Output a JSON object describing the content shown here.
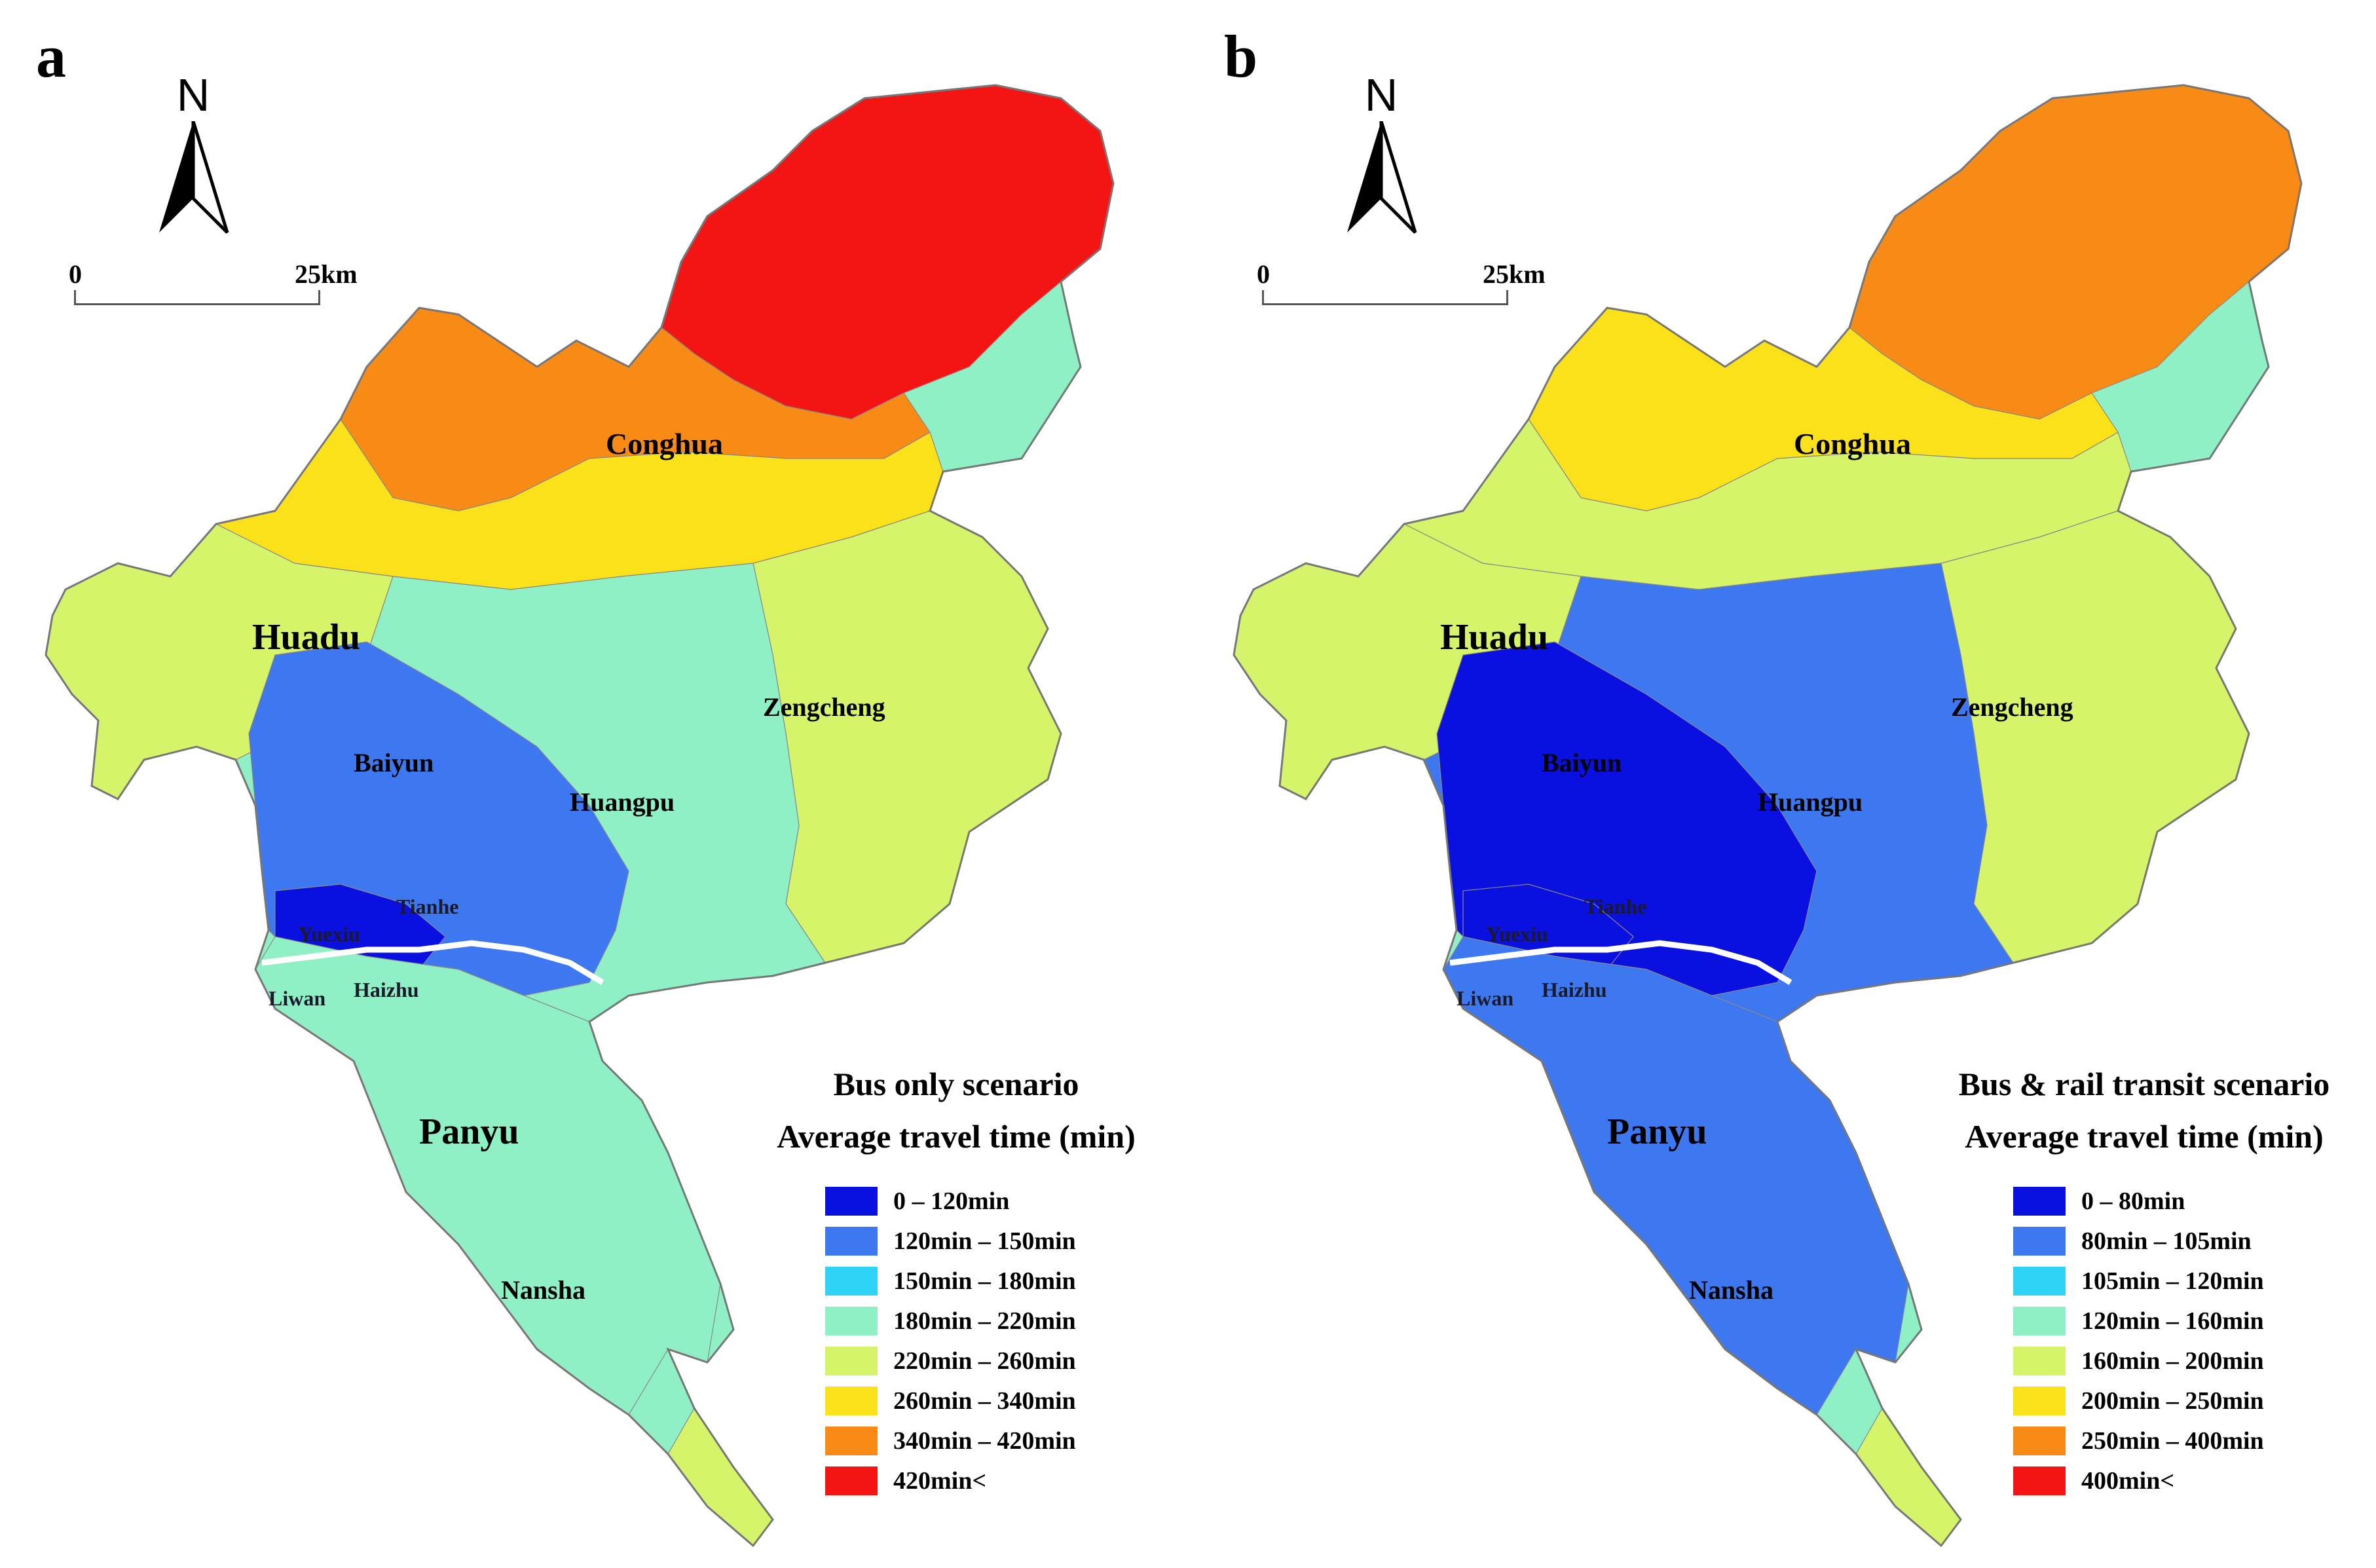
{
  "panels": [
    {
      "letter": "a",
      "north_label": "N",
      "scale": {
        "zero": "0",
        "max": "25",
        "unit": "km"
      },
      "legend": {
        "scenario": "Bus only scenario",
        "subtitle": "Average travel time (min)",
        "items": [
          {
            "label": "0 – 120min",
            "color": "#0a10e0"
          },
          {
            "label": "120min – 150min",
            "color": "#3d78f0"
          },
          {
            "label": "150min – 180min",
            "color": "#2fd3f5"
          },
          {
            "label": "180min – 220min",
            "color": "#8ef0c4"
          },
          {
            "label": "220min – 260min",
            "color": "#d6f46a"
          },
          {
            "label": "260min – 340min",
            "color": "#fbe11a"
          },
          {
            "label": "340min – 420min",
            "color": "#f88a16"
          },
          {
            "label": "420min<",
            "color": "#f41414"
          }
        ]
      },
      "regions": {
        "north": 7,
        "north_mid": 6,
        "conghua_band": 5,
        "west": 4,
        "east": 4,
        "central": 3,
        "core": 1,
        "inner": 0,
        "south": 3,
        "tail": 4,
        "far_tail": 4
      }
    },
    {
      "letter": "b",
      "north_label": "N",
      "scale": {
        "zero": "0",
        "max": "25",
        "unit": "km"
      },
      "legend": {
        "scenario": "Bus & rail transit scenario",
        "subtitle": "Average travel time (min)",
        "items": [
          {
            "label": "0 – 80min",
            "color": "#0a10e0"
          },
          {
            "label": "80min – 105min",
            "color": "#3d78f0"
          },
          {
            "label": "105min – 120min",
            "color": "#2fd3f5"
          },
          {
            "label": "120min – 160min",
            "color": "#8ef0c4"
          },
          {
            "label": "160min – 200min",
            "color": "#d6f46a"
          },
          {
            "label": "200min – 250min",
            "color": "#fbe11a"
          },
          {
            "label": "250min – 400min",
            "color": "#f88a16"
          },
          {
            "label": "400min<",
            "color": "#f41414"
          }
        ]
      },
      "regions": {
        "north": 6,
        "north_mid": 5,
        "conghua_band": 4,
        "west": 4,
        "east": 4,
        "central": 1,
        "core": 0,
        "inner": 0,
        "south": 1,
        "tail": 3,
        "far_tail": 4
      }
    }
  ],
  "place_names": {
    "conghua": "Conghua",
    "huadu": "Huadu",
    "zengcheng": "Zengcheng",
    "baiyun": "Baiyun",
    "huangpu": "Huangpu",
    "tianhe": "Tianhe",
    "yuexiu": "Yuexiu",
    "liwan": "Liwan",
    "haizhu": "Haizhu",
    "panyu": "Panyu",
    "nansha": "Nansha"
  }
}
